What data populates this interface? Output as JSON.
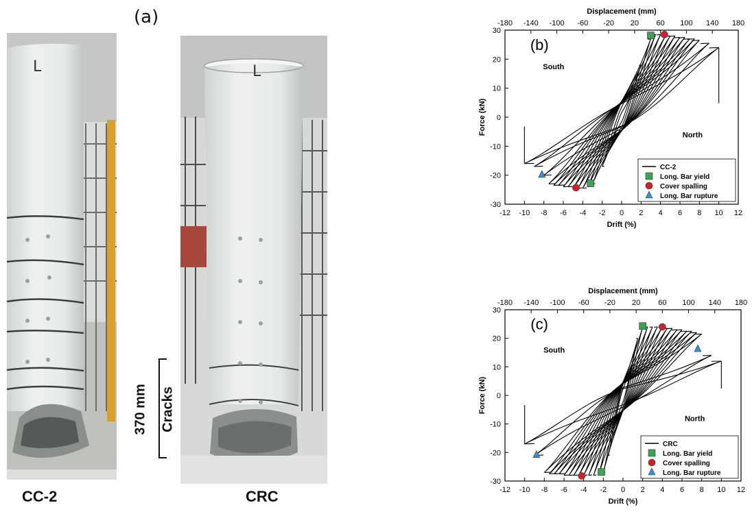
{
  "panel_a": {
    "label": "(a)",
    "left_caption": "CC-2",
    "right_caption": "CRC",
    "crack_extent": "370 mm",
    "crack_label": "Cracks",
    "left_tag": "L",
    "right_tag": "L"
  },
  "chart_data": [
    {
      "type": "line",
      "panel_label": "(b)",
      "title": "",
      "top_axis_label": "Displacement (mm)",
      "top_ticks": [
        -180,
        -140,
        -100,
        -60,
        -20,
        20,
        60,
        100,
        140,
        180
      ],
      "xlabel": "Drift (%)",
      "ylabel": "Force (kN)",
      "xlim": [
        -12,
        12
      ],
      "ylim": [
        -30,
        30
      ],
      "x_ticks": [
        -12,
        -10,
        -8,
        -6,
        -4,
        -2,
        0,
        2,
        4,
        6,
        8,
        10,
        12
      ],
      "y_ticks": [
        -30,
        -20,
        -10,
        0,
        10,
        20,
        30
      ],
      "grid": false,
      "annotations": [
        {
          "text": "South",
          "x": -7,
          "y": 16.5
        },
        {
          "text": "North",
          "x": 7.3,
          "y": -7
        }
      ],
      "legend": {
        "position": "bottom-right",
        "entries": [
          "CC-2",
          "Long. Bar yield",
          "Cover spalling",
          "Long. Bar rupture"
        ]
      },
      "hysteresis_peaks": [
        {
          "drift": 1.0,
          "fpos": 8,
          "fneg": -8
        },
        {
          "drift": 2.0,
          "fpos": 18,
          "fneg": -17
        },
        {
          "drift": 3.0,
          "fpos": 27,
          "fneg": -23
        },
        {
          "drift": 3.5,
          "fpos": 28.5,
          "fneg": -24
        },
        {
          "drift": 4.0,
          "fpos": 28.5,
          "fneg": -24.5
        },
        {
          "drift": 4.5,
          "fpos": 28,
          "fneg": -24.5
        },
        {
          "drift": 5.0,
          "fpos": 28,
          "fneg": -24.5
        },
        {
          "drift": 5.5,
          "fpos": 28,
          "fneg": -24
        },
        {
          "drift": 6.0,
          "fpos": 27.5,
          "fneg": -24
        },
        {
          "drift": 6.5,
          "fpos": 27.5,
          "fneg": -23.5
        },
        {
          "drift": 7.0,
          "fpos": 27,
          "fneg": -23.5
        },
        {
          "drift": 7.5,
          "fpos": 27,
          "fneg": -23
        },
        {
          "drift": 8.0,
          "fpos": 26.5,
          "fneg": -20
        },
        {
          "drift": 9.0,
          "fpos": 25.5,
          "fneg": -17
        },
        {
          "drift": 10.0,
          "fpos": 24,
          "fneg": -16
        }
      ],
      "markers": [
        {
          "series": "Long. Bar yield",
          "x": 3.0,
          "y": 28.2
        },
        {
          "series": "Long. Bar yield",
          "x": -3.2,
          "y": -22.8
        },
        {
          "series": "Cover spalling",
          "x": 4.4,
          "y": 28.5
        },
        {
          "series": "Cover spalling",
          "x": -4.7,
          "y": -24.3
        },
        {
          "series": "Long. Bar rupture",
          "x": -8.2,
          "y": -19.8
        }
      ]
    },
    {
      "type": "line",
      "panel_label": "(c)",
      "title": "",
      "top_axis_label": "Displacement (mm)",
      "top_ticks": [
        -180,
        -140,
        -100,
        -60,
        -20,
        20,
        60,
        100,
        140,
        180
      ],
      "xlabel": "Drift (%)",
      "ylabel": "Force (kN)",
      "xlim": [
        -12,
        12
      ],
      "ylim": [
        -30,
        30
      ],
      "x_ticks": [
        -12,
        -10,
        -8,
        -6,
        -4,
        -2,
        0,
        2,
        4,
        6,
        8,
        10,
        12
      ],
      "y_ticks": [
        -30,
        -20,
        -10,
        0,
        10,
        20,
        30
      ],
      "grid": false,
      "annotations": [
        {
          "text": "South",
          "x": -7,
          "y": 15
        },
        {
          "text": "North",
          "x": 7.3,
          "y": -9
        }
      ],
      "legend": {
        "position": "bottom-right",
        "entries": [
          "CRC",
          "Long. Bar yield",
          "Cover spalling",
          "Long. Bar rupture"
        ]
      },
      "hysteresis_peaks": [
        {
          "drift": 1.0,
          "fpos": 12,
          "fneg": -12
        },
        {
          "drift": 1.5,
          "fpos": 20,
          "fneg": -21
        },
        {
          "drift": 2.0,
          "fpos": 24,
          "fneg": -27
        },
        {
          "drift": 2.5,
          "fpos": 24,
          "fneg": -28
        },
        {
          "drift": 3.0,
          "fpos": 24,
          "fneg": -28
        },
        {
          "drift": 3.5,
          "fpos": 24,
          "fneg": -28
        },
        {
          "drift": 4.0,
          "fpos": 24,
          "fneg": -28
        },
        {
          "drift": 4.5,
          "fpos": 23.5,
          "fneg": -28
        },
        {
          "drift": 5.0,
          "fpos": 23.5,
          "fneg": -28
        },
        {
          "drift": 5.5,
          "fpos": 23,
          "fneg": -28
        },
        {
          "drift": 6.0,
          "fpos": 23,
          "fneg": -28
        },
        {
          "drift": 6.5,
          "fpos": 22.5,
          "fneg": -27.5
        },
        {
          "drift": 7.0,
          "fpos": 22.5,
          "fneg": -27.5
        },
        {
          "drift": 7.5,
          "fpos": 22,
          "fneg": -27.5
        },
        {
          "drift": 8.0,
          "fpos": 21.5,
          "fneg": -27
        },
        {
          "drift": 9.0,
          "fpos": 14,
          "fneg": -21
        },
        {
          "drift": 10.0,
          "fpos": 12,
          "fneg": -17
        }
      ],
      "markers": [
        {
          "series": "Long. Bar yield",
          "x": 2.0,
          "y": 24.3
        },
        {
          "series": "Long. Bar yield",
          "x": -2.2,
          "y": -26.8
        },
        {
          "series": "Cover spalling",
          "x": 4.0,
          "y": 24.0
        },
        {
          "series": "Cover spalling",
          "x": -4.2,
          "y": -28.2
        },
        {
          "series": "Long. Bar rupture",
          "x": 7.6,
          "y": 16.3
        },
        {
          "series": "Long. Bar rupture",
          "x": -8.8,
          "y": -20.8
        }
      ]
    }
  ],
  "marker_styles": {
    "Long. Bar yield": {
      "shape": "square",
      "color": "#3aa357"
    },
    "Cover spalling": {
      "shape": "circle",
      "color": "#d0202a"
    },
    "Long. Bar rupture": {
      "shape": "triangle",
      "color": "#3b8fd6"
    }
  }
}
